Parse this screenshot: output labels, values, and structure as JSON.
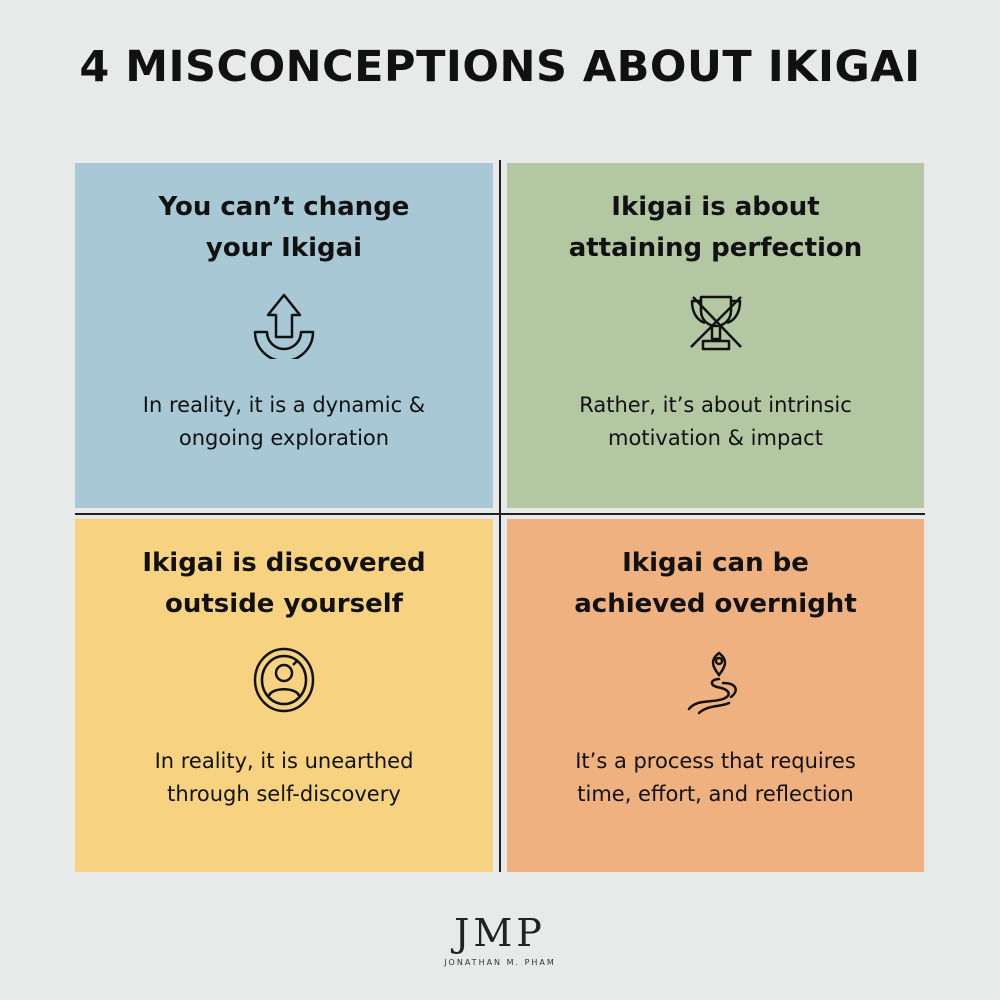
{
  "title": "4 MISCONCEPTIONS ABOUT IKIGAI",
  "panels": [
    {
      "heading_line1": "You can’t change",
      "heading_line2": "your Ikigai",
      "icon": "u-turn-up-arrow-icon",
      "body_line1": "In reality, it is a dynamic &",
      "body_line2": "ongoing exploration",
      "color": "#a8c8d6"
    },
    {
      "heading_line1": "Ikigai is about",
      "heading_line2": "attaining perfection",
      "icon": "crossed-trophy-icon",
      "body_line1": "Rather, it’s about intrinsic",
      "body_line2": "motivation & impact",
      "color": "#b3c7a3"
    },
    {
      "heading_line1": "Ikigai is discovered",
      "heading_line2": "outside yourself",
      "icon": "self-mirror-icon",
      "body_line1": "In reality, it is unearthed",
      "body_line2": "through self-discovery",
      "color": "#f6d281"
    },
    {
      "heading_line1": "Ikigai can be",
      "heading_line2": "achieved overnight",
      "icon": "winding-path-pin-icon",
      "body_line1": "It’s a process that requires",
      "body_line2": "time, effort, and reflection",
      "color": "#efb17f"
    }
  ],
  "logo": {
    "monogram": "JMP",
    "name": "JONATHAN M. PHAM"
  }
}
